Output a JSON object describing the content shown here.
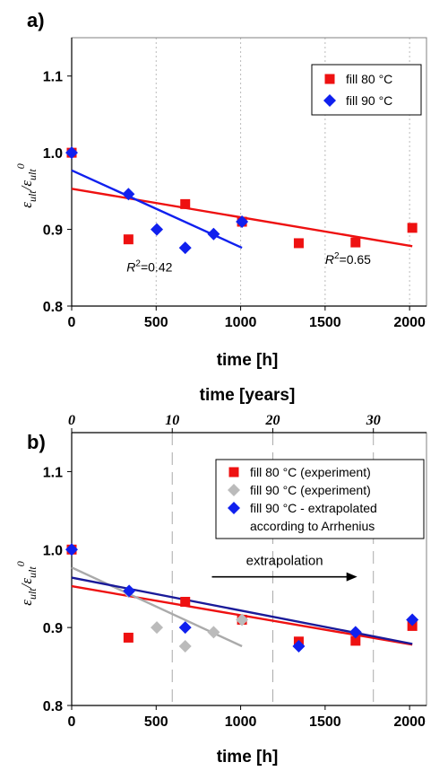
{
  "chart_data": [
    {
      "type": "scatter",
      "panel_label": "a)",
      "xlabel": "time [h]",
      "ylabel": "ε_ult / ε_ult^0",
      "ylabel_main": "ε",
      "ylabel_sub": "ult",
      "ylabel_sup": "0",
      "xlim": [
        0,
        2100
      ],
      "ylim": [
        0.8,
        1.15
      ],
      "xticks": [
        0,
        500,
        1000,
        1500,
        2000
      ],
      "yticks": [
        0.8,
        0.9,
        1.0,
        1.1
      ],
      "ytick_labels": [
        "0.8",
        "0.9",
        "1.0",
        "1.1"
      ],
      "grid": "vertical dotted",
      "legend_position": "top-right",
      "series": [
        {
          "name": "fill 80 °C",
          "marker": "square",
          "color": "#ee1111",
          "points": [
            [
              0,
              1.0
            ],
            [
              336,
              0.887
            ],
            [
              672,
              0.933
            ],
            [
              1008,
              0.91
            ],
            [
              1344,
              0.882
            ],
            [
              1680,
              0.883
            ],
            [
              2016,
              0.902
            ]
          ],
          "fit": {
            "x": [
              0,
              2016
            ],
            "y": [
              0.953,
              0.878
            ],
            "color": "#ee1111"
          }
        },
        {
          "name": "fill 90 °C",
          "marker": "diamond",
          "color": "#1020ee",
          "points": [
            [
              0,
              1.0
            ],
            [
              336,
              0.946
            ],
            [
              504,
              0.9
            ],
            [
              672,
              0.876
            ],
            [
              840,
              0.894
            ],
            [
              1008,
              0.91
            ]
          ],
          "fit": {
            "x": [
              0,
              1008
            ],
            "y": [
              0.977,
              0.876
            ],
            "color": "#1020ee"
          }
        }
      ],
      "annotations": [
        {
          "label": "R",
          "sup": "2",
          "value": "=0.42",
          "x": 325,
          "y": 0.845
        },
        {
          "label": "R",
          "sup": "2",
          "value": "=0.65",
          "x": 1500,
          "y": 0.855
        }
      ]
    },
    {
      "type": "scatter",
      "panel_label": "b)",
      "xlabel": "time [h]",
      "x2label": "time [years]",
      "ylabel": "ε_ult / ε_ult^0",
      "ylabel_main": "ε",
      "ylabel_sub": "ult",
      "ylabel_sup": "0",
      "xlim": [
        0,
        2100
      ],
      "ylim": [
        0.8,
        1.15
      ],
      "xticks": [
        0,
        500,
        1000,
        1500,
        2000
      ],
      "yticks": [
        0.8,
        0.9,
        1.0,
        1.1
      ],
      "ytick_labels": [
        "0.8",
        "0.9",
        "1.0",
        "1.1"
      ],
      "x2ticks": [
        0,
        10,
        20,
        30
      ],
      "x2_hours_per_year": 59.52,
      "grid": "vertical dashed at years",
      "legend_position": "top-right",
      "series": [
        {
          "name": "fill 80 °C (experiment)",
          "marker": "square",
          "color": "#ee1111",
          "points": [
            [
              0,
              1.0
            ],
            [
              336,
              0.887
            ],
            [
              672,
              0.933
            ],
            [
              1008,
              0.91
            ],
            [
              1344,
              0.882
            ],
            [
              1680,
              0.883
            ],
            [
              2016,
              0.902
            ]
          ],
          "fit": {
            "x": [
              0,
              2016
            ],
            "y": [
              0.953,
              0.878
            ],
            "color": "#ee1111"
          }
        },
        {
          "name": "fill 90 °C (experiment)",
          "marker": "diamond",
          "color": "#bbbbbb",
          "points": [
            [
              336,
              0.946
            ],
            [
              504,
              0.9
            ],
            [
              672,
              0.876
            ],
            [
              840,
              0.894
            ],
            [
              1008,
              0.91
            ]
          ],
          "fit": {
            "x": [
              0,
              1008
            ],
            "y": [
              0.977,
              0.876
            ],
            "color": "#aaaaaa"
          }
        },
        {
          "name": "fill 90 °C - extrapolated\naccording to Arrhenius",
          "marker": "diamond",
          "color": "#1020ee",
          "points": [
            [
              0,
              1.0
            ],
            [
              340,
              0.947
            ],
            [
              672,
              0.9
            ],
            [
              1344,
              0.876
            ],
            [
              1680,
              0.894
            ],
            [
              2016,
              0.91
            ]
          ],
          "fit": {
            "x": [
              0,
              2016
            ],
            "y": [
              0.964,
              0.879
            ],
            "color": "#1a1a99"
          }
        }
      ],
      "arrow": {
        "label": "extrapolation",
        "x_start": 830,
        "x_end": 1690,
        "y": 0.965
      }
    }
  ]
}
